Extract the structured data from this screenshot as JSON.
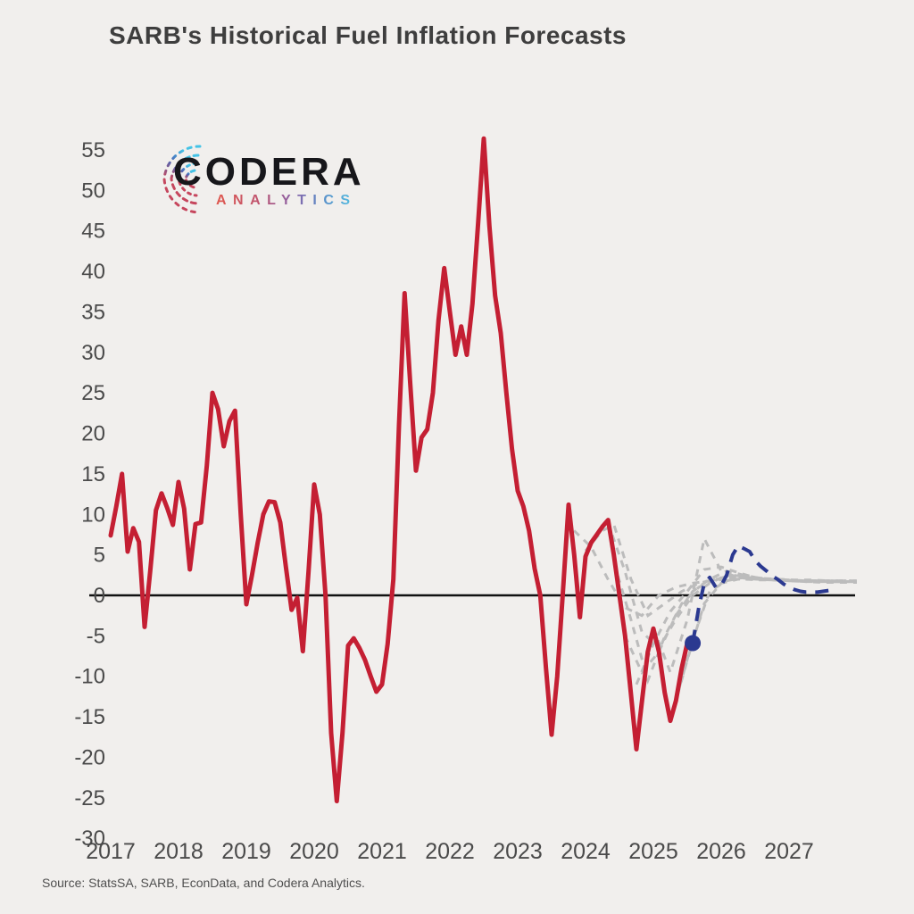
{
  "title": "SARB's Historical Fuel Inflation Forecasts",
  "logo": {
    "word": "CODERA",
    "subtitle": "ANALYTICS"
  },
  "source": "Source: StatsSA, SARB, EconData, and Codera Analytics.",
  "colors": {
    "background": "#f1efed",
    "actual_line": "#c41f33",
    "forecast_gray": "#bcbcbc",
    "latest_forecast_blue": "#2b3990",
    "zero_line": "#111111",
    "axis_text": "#4a4a4a",
    "title_text": "#3e3e3e"
  },
  "chart_data": {
    "type": "line",
    "title": "SARB's Historical Fuel Inflation Forecasts",
    "xlabel": "",
    "ylabel": "",
    "grid": false,
    "legend": "none",
    "x_axis": {
      "ticks": [
        2017,
        2018,
        2019,
        2020,
        2021,
        2022,
        2023,
        2024,
        2025,
        2026,
        2027
      ],
      "range": [
        2016.7,
        2028.1
      ]
    },
    "y_axis": {
      "ticks": [
        55,
        50,
        45,
        40,
        35,
        30,
        25,
        20,
        15,
        10,
        5,
        0,
        -5,
        -10,
        -15,
        -20,
        -25,
        -30
      ],
      "range": [
        -31,
        57
      ]
    },
    "actual": {
      "name": "Actual fuel inflation (y/y %)",
      "start_year": 2017,
      "step_months": 1,
      "values": [
        7.4,
        11.0,
        15.0,
        5.4,
        8.3,
        6.6,
        -3.9,
        3.0,
        10.5,
        12.6,
        10.8,
        8.7,
        14.0,
        10.7,
        3.2,
        8.8,
        9.0,
        16.0,
        25.0,
        23.0,
        18.4,
        21.5,
        22.8,
        10.0,
        -1.1,
        2.5,
        6.5,
        10.0,
        11.6,
        11.5,
        9.0,
        3.5,
        -1.8,
        -0.3,
        -6.9,
        3.0,
        13.7,
        10.0,
        0.0,
        -17.0,
        -25.4,
        -17.0,
        -6.2,
        -5.3,
        -6.5,
        -8.0,
        -10.0,
        -11.9,
        -11.0,
        -6.0,
        2.0,
        21.0,
        37.3,
        26.0,
        15.4,
        19.5,
        20.5,
        25.0,
        34.0,
        40.4,
        35.0,
        29.7,
        33.2,
        29.7,
        36.0,
        46.0,
        56.4,
        45.6,
        37.0,
        32.4,
        25.0,
        18.0,
        12.9,
        11.0,
        8.0,
        3.3,
        0.0,
        -9.0,
        -17.2,
        -10.0,
        0.5,
        11.2,
        5.0,
        -2.7,
        4.8,
        6.5,
        7.5,
        8.5,
        9.3,
        5.0,
        0.0,
        -5.0,
        -12.0,
        -19.0,
        -13.0,
        -7.0,
        -4.1,
        -7.0,
        -12.0,
        -15.5,
        -13.0,
        -9.0,
        -5.9
      ]
    },
    "historical_forecasts": {
      "name": "SARB historical forecasts",
      "lines": [
        {
          "x": [
            2023.83,
            2024.08,
            2024.33,
            2024.58,
            2024.83,
            2025.08,
            2025.33,
            2025.58,
            2025.83,
            2026.08,
            2026.33,
            2026.58,
            2026.83,
            2027.08,
            2027.33,
            2027.58,
            2027.83,
            2028.0
          ],
          "v": [
            8.0,
            6.0,
            2.0,
            -1.5,
            -2.5,
            0.0,
            1.0,
            1.5,
            1.8,
            2.0,
            2.0,
            1.9,
            1.9,
            1.8,
            1.8,
            1.8,
            1.8,
            1.8
          ]
        },
        {
          "x": [
            2024.0,
            2024.25,
            2024.42,
            2024.67,
            2024.92,
            2025.17,
            2025.42,
            2025.67,
            2025.92,
            2026.17,
            2026.42,
            2026.67,
            2026.92,
            2027.17,
            2027.42,
            2027.67,
            2027.92
          ],
          "v": [
            5.5,
            8.0,
            8.7,
            2.0,
            -2.5,
            -1.0,
            0.5,
            1.5,
            2.0,
            2.2,
            2.1,
            2.0,
            1.9,
            1.8,
            1.8,
            1.8,
            1.8
          ]
        },
        {
          "x": [
            2024.33,
            2024.58,
            2024.83,
            2025.08,
            2025.33,
            2025.58,
            2025.83,
            2026.08,
            2026.33,
            2026.58,
            2026.83,
            2027.08,
            2027.33,
            2027.58,
            2027.83,
            2028.0
          ],
          "v": [
            9.0,
            3.0,
            -4.5,
            -6.5,
            -3.0,
            0.0,
            1.5,
            2.5,
            2.3,
            2.0,
            1.9,
            1.8,
            1.8,
            1.7,
            1.7,
            1.7
          ]
        },
        {
          "x": [
            2024.42,
            2024.67,
            2024.92,
            2025.17,
            2025.42,
            2025.67,
            2025.92,
            2026.17,
            2026.42,
            2026.67,
            2026.92,
            2027.17,
            2027.42,
            2027.67,
            2027.92
          ],
          "v": [
            4.0,
            -3.0,
            -10.5,
            -5.0,
            -1.0,
            1.0,
            2.0,
            2.5,
            2.2,
            2.0,
            1.9,
            1.8,
            1.8,
            1.7,
            1.7
          ]
        },
        {
          "x": [
            2024.58,
            2024.83,
            2025.08,
            2025.33,
            2025.58,
            2025.83,
            2026.08,
            2026.33,
            2026.58,
            2026.83,
            2027.08,
            2027.33,
            2027.58,
            2027.83
          ],
          "v": [
            -5.0,
            -9.5,
            -7.0,
            -2.5,
            0.5,
            2.0,
            3.0,
            2.5,
            2.1,
            2.0,
            1.9,
            1.9,
            1.8,
            1.8
          ]
        },
        {
          "x": [
            2024.75,
            2025.0,
            2025.25,
            2025.5,
            2025.75,
            2026.0,
            2026.25,
            2026.5,
            2026.75,
            2027.0,
            2027.25,
            2027.5,
            2027.75,
            2028.0
          ],
          "v": [
            -11.0,
            -6.0,
            -2.0,
            0.5,
            3.2,
            3.5,
            2.8,
            2.2,
            2.0,
            1.9,
            1.8,
            1.8,
            1.8,
            1.8
          ]
        },
        {
          "x": [
            2025.0,
            2025.25,
            2025.5,
            2025.75,
            2026.0,
            2026.25,
            2026.5,
            2026.75,
            2027.0,
            2027.25,
            2027.5,
            2027.75,
            2028.0
          ],
          "v": [
            -4.0,
            -9.5,
            -3.0,
            7.0,
            3.0,
            2.2,
            2.0,
            1.9,
            1.8,
            1.7,
            1.7,
            1.7,
            1.7
          ]
        },
        {
          "x": [
            2025.25,
            2025.5,
            2025.75,
            2026.0,
            2026.25,
            2026.5,
            2026.75,
            2027.0,
            2027.25,
            2027.5,
            2027.75,
            2028.0
          ],
          "v": [
            -15.5,
            -8.0,
            -1.0,
            1.5,
            2.0,
            2.0,
            1.9,
            1.8,
            1.7,
            1.6,
            1.6,
            1.6
          ]
        },
        {
          "x": [
            2025.33,
            2025.58,
            2025.83,
            2026.08,
            2026.33,
            2026.58,
            2026.83,
            2027.08,
            2027.33,
            2027.58,
            2027.83
          ],
          "v": [
            -13.0,
            -5.5,
            0.5,
            1.8,
            2.2,
            2.0,
            1.9,
            1.8,
            1.8,
            1.7,
            1.7
          ]
        }
      ]
    },
    "latest_forecast": {
      "name": "Latest SARB forecast",
      "x": [
        2025.58,
        2025.67,
        2025.75,
        2025.83,
        2025.92,
        2026.0,
        2026.08,
        2026.17,
        2026.25,
        2026.33,
        2026.42,
        2026.5,
        2026.58,
        2026.67,
        2026.75,
        2026.83,
        2026.92,
        2027.0,
        2027.08,
        2027.17,
        2027.25,
        2027.33,
        2027.42,
        2027.5,
        2027.58,
        2027.67
      ],
      "v": [
        -5.9,
        -1.5,
        1.5,
        2.2,
        1.0,
        1.2,
        2.5,
        5.0,
        6.1,
        5.8,
        5.4,
        4.3,
        3.6,
        3.0,
        2.4,
        2.0,
        1.4,
        1.0,
        0.7,
        0.5,
        0.4,
        0.4,
        0.4,
        0.5,
        0.6,
        0.7
      ]
    },
    "latest_actual_point": {
      "x": 2025.58,
      "v": -5.9
    }
  }
}
